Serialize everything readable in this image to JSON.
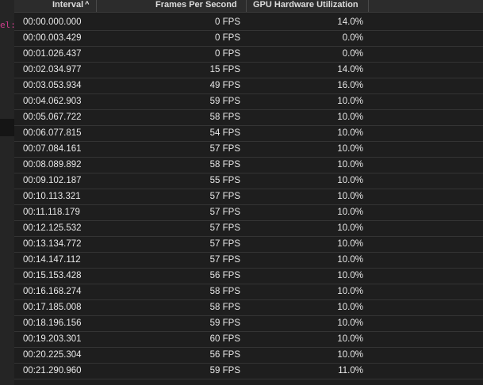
{
  "sidebar": {
    "code_fragment": "el:"
  },
  "table": {
    "columns": {
      "interval": "Interval",
      "fps": "Frames Per Second",
      "gpu": "GPU Hardware Utilization"
    },
    "sort_indicator": "^",
    "rows": [
      {
        "interval": "00:00.000.000",
        "fps": "0 FPS",
        "gpu": "14.0%"
      },
      {
        "interval": "00:00.003.429",
        "fps": "0 FPS",
        "gpu": "0.0%"
      },
      {
        "interval": "00:01.026.437",
        "fps": "0 FPS",
        "gpu": "0.0%"
      },
      {
        "interval": "00:02.034.977",
        "fps": "15 FPS",
        "gpu": "14.0%"
      },
      {
        "interval": "00:03.053.934",
        "fps": "49 FPS",
        "gpu": "16.0%"
      },
      {
        "interval": "00:04.062.903",
        "fps": "59 FPS",
        "gpu": "10.0%"
      },
      {
        "interval": "00:05.067.722",
        "fps": "58 FPS",
        "gpu": "10.0%"
      },
      {
        "interval": "00:06.077.815",
        "fps": "54 FPS",
        "gpu": "10.0%"
      },
      {
        "interval": "00:07.084.161",
        "fps": "57 FPS",
        "gpu": "10.0%"
      },
      {
        "interval": "00:08.089.892",
        "fps": "58 FPS",
        "gpu": "10.0%"
      },
      {
        "interval": "00:09.102.187",
        "fps": "55 FPS",
        "gpu": "10.0%"
      },
      {
        "interval": "00:10.113.321",
        "fps": "57 FPS",
        "gpu": "10.0%"
      },
      {
        "interval": "00:11.118.179",
        "fps": "57 FPS",
        "gpu": "10.0%"
      },
      {
        "interval": "00:12.125.532",
        "fps": "57 FPS",
        "gpu": "10.0%"
      },
      {
        "interval": "00:13.134.772",
        "fps": "57 FPS",
        "gpu": "10.0%"
      },
      {
        "interval": "00:14.147.112",
        "fps": "57 FPS",
        "gpu": "10.0%"
      },
      {
        "interval": "00:15.153.428",
        "fps": "56 FPS",
        "gpu": "10.0%"
      },
      {
        "interval": "00:16.168.274",
        "fps": "58 FPS",
        "gpu": "10.0%"
      },
      {
        "interval": "00:17.185.008",
        "fps": "58 FPS",
        "gpu": "10.0%"
      },
      {
        "interval": "00:18.196.156",
        "fps": "59 FPS",
        "gpu": "10.0%"
      },
      {
        "interval": "00:19.203.301",
        "fps": "60 FPS",
        "gpu": "10.0%"
      },
      {
        "interval": "00:20.225.304",
        "fps": "56 FPS",
        "gpu": "10.0%"
      },
      {
        "interval": "00:21.290.960",
        "fps": "59 FPS",
        "gpu": "11.0%"
      }
    ]
  }
}
